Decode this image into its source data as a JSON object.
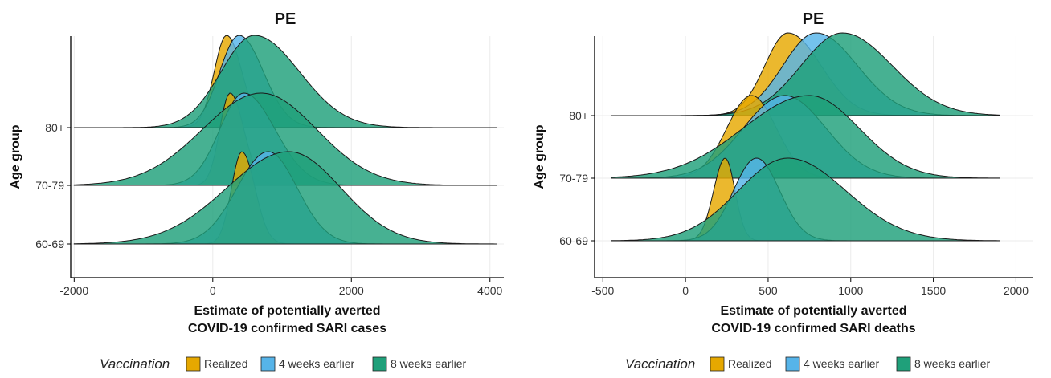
{
  "legend": {
    "title": "Vaccination",
    "items": [
      {
        "label": "Realized",
        "color": "#E6A800"
      },
      {
        "label": "4 weeks earlier",
        "color": "#56B4E9"
      },
      {
        "label": "8 weeks earlier",
        "color": "#1FA07A"
      }
    ]
  },
  "chart_data": [
    {
      "type": "ridgeline",
      "title": "PE",
      "ylabel": "Age group",
      "xlabel_lines": [
        "Estimate of potentially averted",
        "COVID-19 confirmed SARI cases"
      ],
      "xlim": [
        -2050,
        4200
      ],
      "xticks": [
        -2000,
        0,
        2000,
        4000
      ],
      "categories": [
        "60-69",
        "70-79",
        "80+"
      ],
      "legend_position": "bottom",
      "grid": true,
      "series": [
        {
          "name": "Realized",
          "color": "#E6A800",
          "ridges": {
            "80+": {
              "peak": 200,
              "sd_left": 180,
              "sd_right": 220,
              "range": [
                -2000,
                4100
              ]
            },
            "70-79": {
              "peak": 250,
              "sd_left": 150,
              "sd_right": 200,
              "range": [
                -2000,
                4100
              ]
            },
            "60-69": {
              "peak": 420,
              "sd_left": 150,
              "sd_right": 190,
              "range": [
                -2000,
                4100
              ]
            }
          }
        },
        {
          "name": "4 weeks earlier",
          "color": "#56B4E9",
          "ridges": {
            "80+": {
              "peak": 380,
              "sd_left": 280,
              "sd_right": 350,
              "range": [
                -2000,
                4100
              ]
            },
            "70-79": {
              "peak": 450,
              "sd_left": 350,
              "sd_right": 450,
              "range": [
                -2000,
                4100
              ]
            },
            "60-69": {
              "peak": 800,
              "sd_left": 450,
              "sd_right": 420,
              "range": [
                -2000,
                4100
              ]
            }
          }
        },
        {
          "name": "8 weeks earlier",
          "color": "#1FA07A",
          "ridges": {
            "80+": {
              "peak": 600,
              "sd_left": 480,
              "sd_right": 650,
              "range": [
                -2000,
                4100
              ]
            },
            "70-79": {
              "peak": 700,
              "sd_left": 850,
              "sd_right": 800,
              "range": [
                -2000,
                4100
              ]
            },
            "60-69": {
              "peak": 1100,
              "sd_left": 900,
              "sd_right": 750,
              "range": [
                -2000,
                4100
              ]
            }
          }
        }
      ]
    },
    {
      "type": "ridgeline",
      "title": "PE",
      "ylabel": "Age group",
      "xlabel_lines": [
        "Estimate of potentially averted",
        "COVID-19 confirmed SARI deaths"
      ],
      "xlim": [
        -550,
        2100
      ],
      "xticks": [
        -500,
        0,
        500,
        1000,
        1500,
        2000
      ],
      "categories": [
        "60-69",
        "70-79",
        "80+"
      ],
      "legend_position": "bottom",
      "grid": true,
      "series": [
        {
          "name": "Realized",
          "color": "#E6A800",
          "ridges": {
            "80+": {
              "peak": 620,
              "sd_left": 140,
              "sd_right": 200,
              "range": [
                -450,
                1900
              ]
            },
            "70-79": {
              "peak": 400,
              "sd_left": 150,
              "sd_right": 150,
              "range": [
                -450,
                1900
              ]
            },
            "60-69": {
              "peak": 240,
              "sd_left": 70,
              "sd_right": 60,
              "range": [
                -450,
                1900
              ]
            }
          }
        },
        {
          "name": "4 weeks earlier",
          "color": "#56B4E9",
          "ridges": {
            "80+": {
              "peak": 790,
              "sd_left": 200,
              "sd_right": 250,
              "range": [
                -450,
                1900
              ]
            },
            "70-79": {
              "peak": 600,
              "sd_left": 250,
              "sd_right": 250,
              "range": [
                -450,
                1900
              ]
            },
            "60-69": {
              "peak": 430,
              "sd_left": 140,
              "sd_right": 140,
              "range": [
                -450,
                1900
              ]
            }
          }
        },
        {
          "name": "8 weeks earlier",
          "color": "#1FA07A",
          "ridges": {
            "80+": {
              "peak": 950,
              "sd_left": 250,
              "sd_right": 300,
              "range": [
                -450,
                1900
              ]
            },
            "70-79": {
              "peak": 750,
              "sd_left": 400,
              "sd_right": 300,
              "range": [
                -450,
                1900
              ]
            },
            "60-69": {
              "peak": 620,
              "sd_left": 300,
              "sd_right": 350,
              "range": [
                -450,
                1900
              ]
            }
          }
        }
      ]
    }
  ]
}
